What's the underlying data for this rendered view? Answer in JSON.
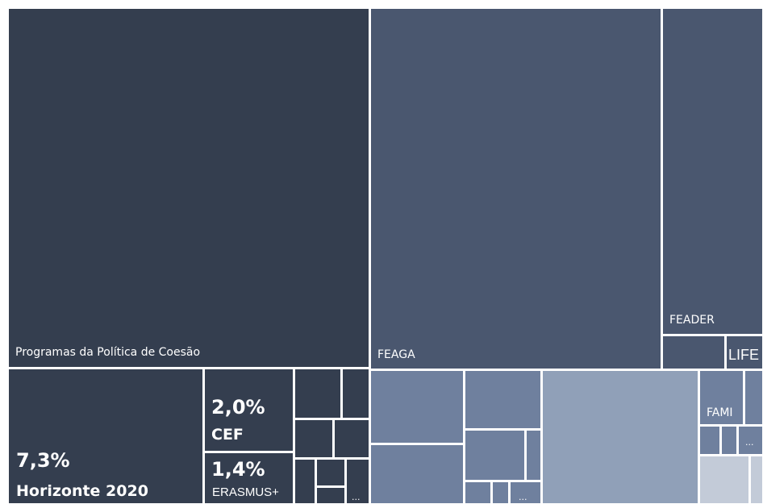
{
  "chart_data": {
    "type": "treemap",
    "labels": {
      "cohesion": "Programas da Política de Coesão",
      "feaga": "FEAGA",
      "feader": "FEADER",
      "life": "LIFE",
      "horizon_value": "7,3%",
      "horizon_name": "Horizonte 2020",
      "cef_value": "2,0%",
      "cef_name": "CEF",
      "erasmus_value": "1,4%",
      "erasmus_name": "ERASMUS+",
      "fami": "FAMI",
      "more": "..."
    },
    "colors": {
      "group_dark": "#343e4f",
      "group_mid": "#4a576f",
      "group_light": "#6f809e",
      "group_lighter": "#90a0b8",
      "group_lightest": "#c3cbd8",
      "border": "#ffffff"
    }
  }
}
